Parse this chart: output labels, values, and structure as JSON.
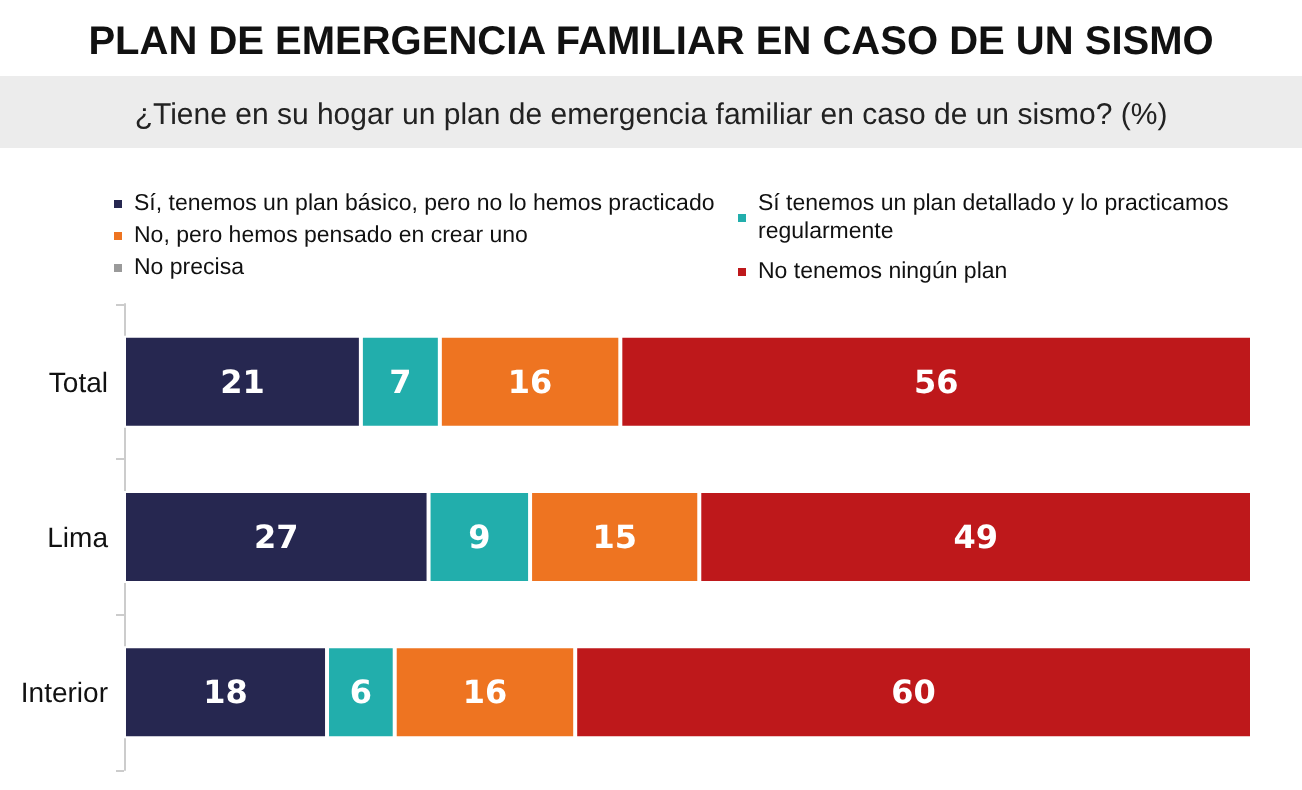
{
  "chart_data": {
    "type": "bar",
    "orientation": "horizontal",
    "stacked": true,
    "title": "PLAN DE EMERGENCIA FAMILIAR EN CASO DE UN SISMO",
    "subtitle": "¿Tiene en su hogar un plan de emergencia familiar en caso de un sismo? (%)",
    "categories": [
      "Total",
      "Lima",
      "Interior"
    ],
    "series": [
      {
        "name": "Sí, tenemos un plan básico, pero no lo hemos practicado",
        "color": "#262750",
        "values": [
          21,
          27,
          18
        ],
        "value_labels": [
          "21",
          "27",
          "18"
        ]
      },
      {
        "name": "Sí tenemos un plan detallado y lo practicamos regularmente",
        "color": "#22aeac",
        "values": [
          7,
          9,
          6
        ],
        "value_labels": [
          "7",
          "9",
          "6"
        ]
      },
      {
        "name": "No, pero hemos pensado en crear uno",
        "color": "#ee7421",
        "values": [
          16,
          15,
          16
        ],
        "value_labels": [
          "16",
          "15",
          "16"
        ]
      },
      {
        "name": "No tenemos ningún plan",
        "color": "#be181b",
        "values": [
          56,
          49,
          60
        ],
        "value_labels": [
          "56",
          "49",
          "60"
        ]
      },
      {
        "name": "No precisa",
        "color": "#9a9a9a",
        "values": [
          0,
          0,
          0
        ],
        "value_labels": [
          null,
          null,
          null
        ]
      }
    ],
    "xlim": [
      0,
      100
    ],
    "tick_labels": "y",
    "legend": "top",
    "grid": false
  }
}
